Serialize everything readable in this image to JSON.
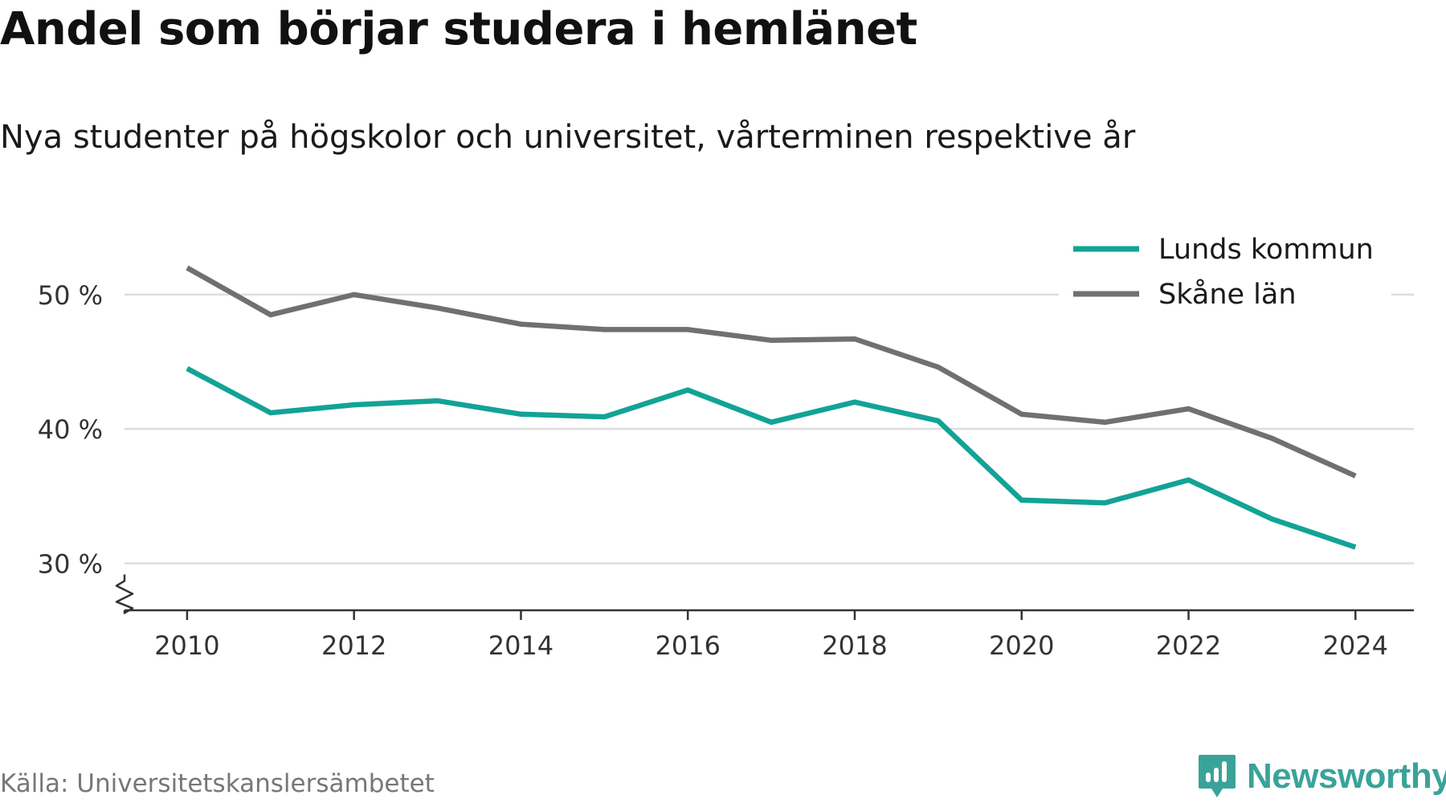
{
  "title": "Andel som börjar studera i hemlänet",
  "subtitle": "Nya studenter på högskolor och universitet, vårterminen respektive år",
  "source": "Källa: Universitetskanslersämbetet",
  "brand": "Newsworthy",
  "colors": {
    "lund": "#12a396",
    "skane": "#707070",
    "brand": "#3aa399"
  },
  "chart_data": {
    "type": "line",
    "x": [
      2010,
      2011,
      2012,
      2013,
      2014,
      2015,
      2016,
      2017,
      2018,
      2019,
      2020,
      2021,
      2022,
      2023,
      2024
    ],
    "series": [
      {
        "name": "Lunds kommun",
        "color": "#12a396",
        "values": [
          44.5,
          41.2,
          41.8,
          42.1,
          41.1,
          40.9,
          42.9,
          40.5,
          42.0,
          40.6,
          34.7,
          34.5,
          36.2,
          33.3,
          31.2
        ]
      },
      {
        "name": "Skåne län",
        "color": "#707070",
        "values": [
          52.0,
          48.5,
          50.0,
          49.0,
          47.8,
          47.4,
          47.4,
          46.6,
          46.7,
          44.6,
          41.1,
          40.5,
          41.5,
          39.3,
          36.5
        ]
      }
    ],
    "xticks": [
      2010,
      2012,
      2014,
      2016,
      2018,
      2020,
      2022,
      2024
    ],
    "xtick_labels": [
      "2010",
      "2012",
      "2014",
      "2016",
      "2018",
      "2020",
      "2022",
      "2024"
    ],
    "yticks": [
      30,
      40,
      50
    ],
    "ytick_labels": [
      "30 %",
      "40 %",
      "50 %"
    ],
    "ylim": [
      26.5,
      54
    ],
    "xlim": [
      2009.25,
      2024.7
    ],
    "y_axis_break": true,
    "grid": true,
    "legend": "top-right"
  }
}
